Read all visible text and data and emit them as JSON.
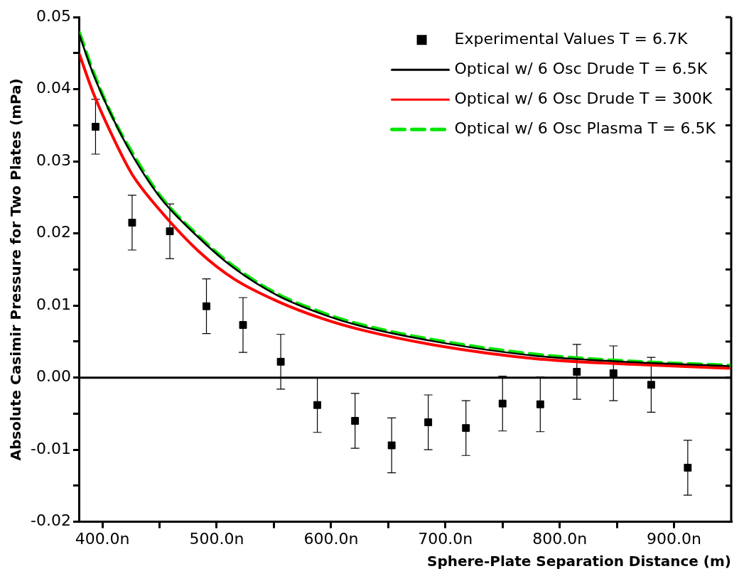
{
  "chart_data": {
    "type": "line",
    "xlabel": "Sphere-Plate Separation Distance (m)",
    "ylabel": "Absolute Casimir Pressure for Two Plates (mPa)",
    "xlim": [
      380,
      950
    ],
    "xticks": [
      {
        "value": 400,
        "label": "400.0n"
      },
      {
        "value": 450,
        "label": null
      },
      {
        "value": 500,
        "label": "500.0n"
      },
      {
        "value": 550,
        "label": null
      },
      {
        "value": 600,
        "label": "600.0n"
      },
      {
        "value": 650,
        "label": null
      },
      {
        "value": 700,
        "label": "700.0n"
      },
      {
        "value": 750,
        "label": null
      },
      {
        "value": 800,
        "label": "800.0n"
      },
      {
        "value": 850,
        "label": null
      },
      {
        "value": 900,
        "label": "900.0n"
      }
    ],
    "ylim": [
      -0.02,
      0.05
    ],
    "yticks": [
      {
        "value": -0.02,
        "label": "-0.02"
      },
      {
        "value": -0.015,
        "label": null
      },
      {
        "value": -0.01,
        "label": "-0.01"
      },
      {
        "value": -0.005,
        "label": null
      },
      {
        "value": 0,
        "label": "0.00"
      },
      {
        "value": 0.005,
        "label": null
      },
      {
        "value": 0.01,
        "label": "0.01"
      },
      {
        "value": 0.015,
        "label": null
      },
      {
        "value": 0.02,
        "label": "0.02"
      },
      {
        "value": 0.025,
        "label": null
      },
      {
        "value": 0.03,
        "label": "0.03"
      },
      {
        "value": 0.035,
        "label": null
      },
      {
        "value": 0.04,
        "label": "0.04"
      },
      {
        "value": 0.045,
        "label": null
      },
      {
        "value": 0.05,
        "label": "0.05"
      }
    ],
    "grid": false,
    "legend": "top right",
    "ref_lines": [
      {
        "axis": "y",
        "value": 0,
        "label": null,
        "color": "#000000"
      }
    ],
    "series": [
      {
        "name": "Experimental Values T = 6.7K",
        "type": "scatter",
        "color": "#000000",
        "marker": "square",
        "x": [
          394,
          426,
          459,
          491,
          523,
          556,
          588,
          621,
          653,
          685,
          718,
          750,
          783,
          815,
          847,
          880,
          912
        ],
        "values": [
          0.0348,
          0.0215,
          0.0203,
          0.0099,
          0.0073,
          0.0022,
          -0.0038,
          -0.006,
          -0.0094,
          -0.0062,
          -0.007,
          -0.0036,
          -0.0037,
          0.0008,
          0.0006,
          -0.001,
          -0.0125
        ],
        "errors": [
          0.0038,
          0.0038,
          0.0038,
          0.0038,
          0.0038,
          0.0038,
          0.0038,
          0.0038,
          0.0038,
          0.0038,
          0.0038,
          0.0038,
          0.0038,
          0.0038,
          0.0038,
          0.0038,
          0.0038
        ]
      },
      {
        "name": "Optical w/ 6 Osc Drude T = 6.5K",
        "type": "line",
        "color": "#000000",
        "marker": "none",
        "line_style": "solid",
        "x": [
          380,
          392,
          410,
          426,
          451,
          485,
          515,
          553,
          594,
          627,
          691,
          780,
          869,
          948
        ],
        "values": [
          0.0475,
          0.0421,
          0.0357,
          0.0309,
          0.0249,
          0.0193,
          0.0152,
          0.0114,
          0.0087,
          0.0071,
          0.005,
          0.003,
          0.0021,
          0.0016
        ]
      },
      {
        "name": "Optical w/ 6 Osc Drude T = 300K",
        "type": "line",
        "color": "#ff0000",
        "marker": "none",
        "line_style": "solid",
        "x": [
          380,
          392,
          410,
          426,
          451,
          485,
          515,
          553,
          594,
          627,
          691,
          780,
          869,
          948
        ],
        "values": [
          0.0448,
          0.0395,
          0.0331,
          0.0282,
          0.0231,
          0.0174,
          0.0137,
          0.0106,
          0.0081,
          0.0066,
          0.0045,
          0.0026,
          0.0018,
          0.0013
        ]
      },
      {
        "name": "Optical w/ 6 Osc Plasma T = 6.5K",
        "type": "line",
        "color": "#00e600",
        "marker": "none",
        "line_style": "dashed",
        "x": [
          380,
          392,
          410,
          426,
          451,
          485,
          515,
          553,
          594,
          627,
          691,
          780,
          869,
          948
        ],
        "values": [
          0.0478,
          0.0424,
          0.0358,
          0.0312,
          0.0251,
          0.0195,
          0.0154,
          0.0116,
          0.0089,
          0.0073,
          0.0052,
          0.0032,
          0.0022,
          0.0017
        ]
      }
    ]
  }
}
